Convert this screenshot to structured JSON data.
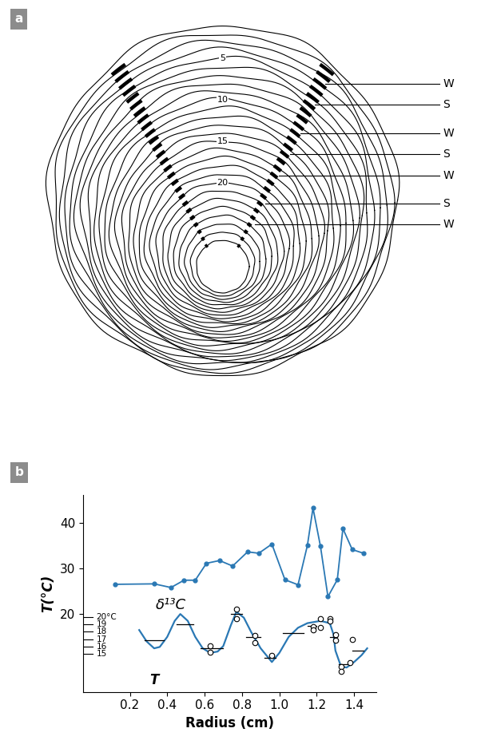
{
  "diagram": {
    "panel_label": "a",
    "ring_numbers": [
      5,
      10,
      15,
      20
    ],
    "season_labels": [
      "W",
      "S",
      "W",
      "S",
      "W",
      "S",
      "W"
    ]
  },
  "chart_data": {
    "panel_label": "b",
    "type": "line",
    "xlabel": "Radius (cm)",
    "ylabel": "T(°C)",
    "xlim": [
      -0.05,
      1.52
    ],
    "ylim": [
      3,
      46
    ],
    "xticks": [
      0.2,
      0.4,
      0.6,
      0.8,
      1.0,
      1.2,
      1.4
    ],
    "yticks": [
      20,
      30,
      40
    ],
    "series": [
      {
        "name": "δ¹³C",
        "color": "#2a78b4",
        "marker": "o",
        "x": [
          0.12,
          0.33,
          0.42,
          0.49,
          0.55,
          0.61,
          0.68,
          0.75,
          0.83,
          0.89,
          0.96,
          1.03,
          1.1,
          1.15,
          1.18,
          1.22,
          1.26,
          1.31,
          1.34,
          1.39,
          1.45
        ],
        "values": [
          26.5,
          26.6,
          25.8,
          27.4,
          27.4,
          31.1,
          31.7,
          30.5,
          33.6,
          33.3,
          35.3,
          27.5,
          26.4,
          35.0,
          43.2,
          34.8,
          23.8,
          27.5,
          38.7,
          34.1,
          33.3
        ]
      },
      {
        "name": "T",
        "color": "#2a78b4",
        "marker": "none",
        "x": [
          0.25,
          0.29,
          0.33,
          0.36,
          0.4,
          0.44,
          0.47,
          0.51,
          0.55,
          0.59,
          0.63,
          0.67,
          0.7,
          0.74,
          0.77,
          0.81,
          0.85,
          0.9,
          0.96,
          1.0,
          1.05,
          1.1,
          1.15,
          1.22,
          1.27,
          1.29,
          1.3,
          1.33,
          1.36,
          1.4,
          1.44,
          1.47
        ],
        "values": [
          16.5,
          14.0,
          12.5,
          12.8,
          15.0,
          18.5,
          20.0,
          18.5,
          15.0,
          12.5,
          11.5,
          11.8,
          13.0,
          17.5,
          20.5,
          19.2,
          16.0,
          12.5,
          9.5,
          11.5,
          15.0,
          17.0,
          18.0,
          18.5,
          18.0,
          15.5,
          12.0,
          8.5,
          8.3,
          9.5,
          11.0,
          12.5
        ]
      }
    ],
    "measurements": {
      "x": [
        0.63,
        0.63,
        0.77,
        0.77,
        0.87,
        0.87,
        0.96,
        1.18,
        1.18,
        1.22,
        1.22,
        1.27,
        1.27,
        1.3,
        1.3,
        1.33,
        1.33,
        1.38,
        1.39
      ],
      "values": [
        13.0,
        11.6,
        21.0,
        19.0,
        15.3,
        13.8,
        11.0,
        17.2,
        16.5,
        19.0,
        17.0,
        19.0,
        18.5,
        15.5,
        14.3,
        8.5,
        7.5,
        9.3,
        14.5
      ]
    },
    "mean_segments": [
      {
        "x": [
          0.28,
          0.38
        ],
        "value": 14.2
      },
      {
        "x": [
          0.45,
          0.54
        ],
        "value": 17.8
      },
      {
        "x": [
          0.58,
          0.7
        ],
        "value": 12.5
      },
      {
        "x": [
          0.74,
          0.8
        ],
        "value": 20.0
      },
      {
        "x": [
          0.82,
          0.9
        ],
        "value": 15.0
      },
      {
        "x": [
          0.92,
          0.98
        ],
        "value": 10.5
      },
      {
        "x": [
          1.02,
          1.13
        ],
        "value": 15.8
      },
      {
        "x": [
          1.15,
          1.2
        ],
        "value": 17.4
      },
      {
        "x": [
          1.27,
          1.31
        ],
        "value": 15.0
      },
      {
        "x": [
          1.32,
          1.37
        ],
        "value": 9.0
      },
      {
        "x": [
          1.39,
          1.45
        ],
        "value": 12.0
      }
    ],
    "temperature_scale": [
      {
        "value": 19.3,
        "label": "20°C"
      },
      {
        "value": 17.7,
        "label": "19"
      },
      {
        "value": 16.1,
        "label": "18"
      },
      {
        "value": 14.5,
        "label": "17"
      },
      {
        "value": 12.9,
        "label": "16"
      },
      {
        "value": 11.3,
        "label": "15"
      }
    ]
  }
}
